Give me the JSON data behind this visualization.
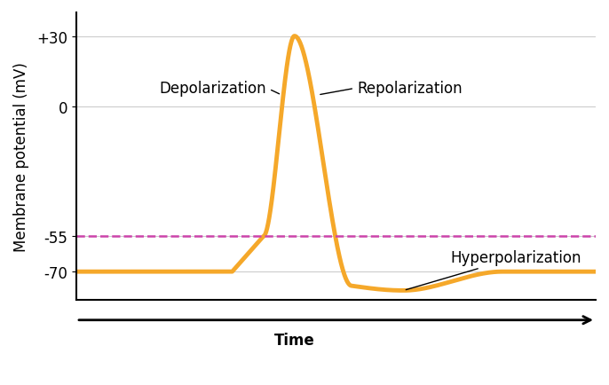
{
  "title": "",
  "ylabel": "Membrane potential (mV)",
  "xlabel": "Time",
  "ylim": [
    -82,
    40
  ],
  "xlim": [
    0,
    100
  ],
  "yticks": [
    -70,
    -55,
    0,
    30
  ],
  "ytick_labels": [
    "-70",
    "-55",
    "0",
    "+30"
  ],
  "line_color": "#F5A82A",
  "line_width": 3.5,
  "dashed_line_y": -55,
  "dashed_color": "#CC44AA",
  "background_color": "#ffffff",
  "grid_color": "#cccccc",
  "annotation_depolarization": "Depolarization",
  "annotation_repolarization": "Repolarization",
  "annotation_hyperpolarization": "Hyperpolarization",
  "label_fontsize": 12,
  "axis_label_fontsize": 12
}
